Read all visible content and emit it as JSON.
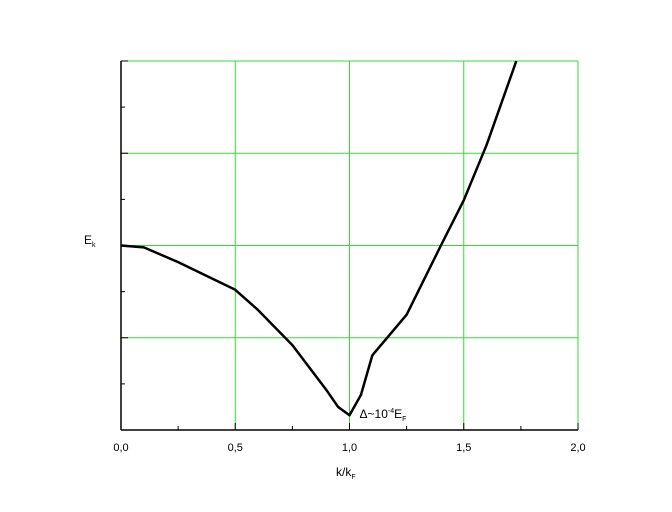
{
  "chart_data": {
    "type": "line",
    "x_label": {
      "main": "k/k",
      "sub": "F"
    },
    "y_label": {
      "main": "E",
      "sub": "k"
    },
    "annotation": {
      "x": 1.0,
      "main": "Δ~10",
      "sup": "-4",
      "main2": "E",
      "sub": "F"
    },
    "x": [
      0,
      0.1,
      0.25,
      0.5,
      0.6,
      0.75,
      0.9,
      0.95,
      1.0,
      1.05,
      1.1,
      1.25,
      1.4,
      1.5,
      1.6,
      1.73
    ],
    "series": [
      {
        "color": "#000000",
        "values": [
          2.0,
          1.98,
          1.82,
          1.52,
          1.3,
          0.92,
          0.43,
          0.25,
          0.16,
          0.38,
          0.81,
          1.25,
          2.0,
          2.49,
          3.09,
          4.0
        ]
      }
    ],
    "xlim": [
      0,
      2
    ],
    "ylim": [
      0,
      4
    ],
    "xticks": [
      {
        "value": 0,
        "label": "0,0"
      },
      {
        "value": 0.5,
        "label": "0,5"
      },
      {
        "value": 1,
        "label": "1,0"
      },
      {
        "value": 1.5,
        "label": "1,5"
      },
      {
        "value": 2,
        "label": "2,0"
      }
    ],
    "yticks": [
      0,
      1,
      2,
      3,
      4
    ],
    "xminor_ticks": [
      0.25,
      0.75,
      1.25,
      1.75
    ],
    "yminor_ticks": [
      0.5,
      1.5,
      2.5,
      3.5
    ],
    "grid": true,
    "grid_color": "#33dd33"
  }
}
